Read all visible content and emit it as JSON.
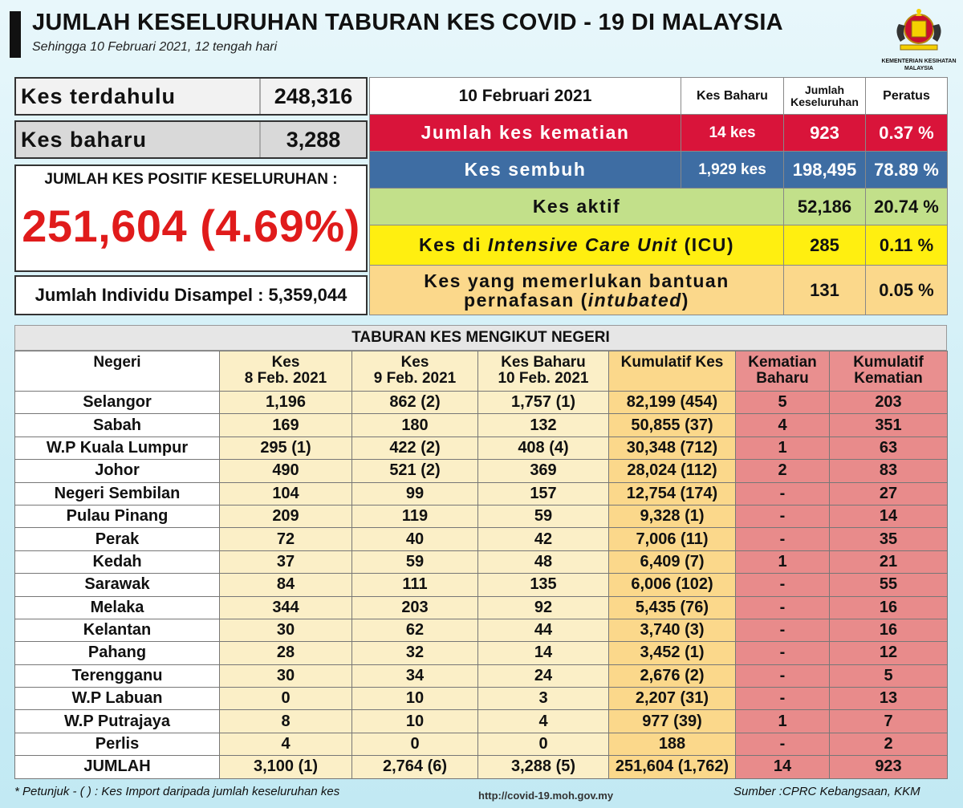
{
  "header": {
    "title": "JUMLAH KESELURUHAN TABURAN KES COVID - 19 DI MALAYSIA",
    "subtitle": "Sehingga 10 Februari 2021, 12 tengah hari",
    "ministry_label": "KEMENTERIAN KESIHATAN MALAYSIA"
  },
  "summary": {
    "prev_label": "Kes terdahulu",
    "prev_value": "248,316",
    "new_label": "Kes baharu",
    "new_value": "3,288",
    "positive_label": "JUMLAH KES POSITIF KESELURUHAN :",
    "positive_value": "251,604 (4.69%)",
    "sampled": "Jumlah Individu Disampel : 5,359,044"
  },
  "status": {
    "date": "10 Februari 2021",
    "col_new": "Kes Baharu",
    "col_total": "Jumlah Keseluruhan",
    "col_pct": "Peratus",
    "death_label": "Jumlah kes kematian",
    "death_new": "14 kes",
    "death_total": "923",
    "death_pct": "0.37 %",
    "recovered_label": "Kes sembuh",
    "recovered_new": "1,929 kes",
    "recovered_total": "198,495",
    "recovered_pct": "78.89 %",
    "active_label": "Kes aktif",
    "active_total": "52,186",
    "active_pct": "20.74 %",
    "icu_pre": "Kes di ",
    "icu_em": "Intensive Care Unit",
    "icu_post": " (ICU)",
    "icu_total": "285",
    "icu_pct": "0.11 %",
    "intub_line1": "Kes yang memerlukan bantuan",
    "intub_line2_pre": "pernafasan (",
    "intub_line2_em": "intubated",
    "intub_line2_post": ")",
    "intub_total": "131",
    "intub_pct": "0.05 %",
    "colors": {
      "death": "#d9143a",
      "recovered": "#3e6da3",
      "active": "#c2e08a",
      "icu": "#ffef10",
      "intubated": "#fbd88b"
    }
  },
  "states": {
    "title": "TABURAN KES MENGIKUT NEGERI",
    "headers": {
      "state": "Negeri",
      "c1a": "Kes",
      "c1b": "8 Feb. 2021",
      "c2a": "Kes",
      "c2b": "9 Feb. 2021",
      "c3a": "Kes Baharu",
      "c3b": "10 Feb. 2021",
      "c4": "Kumulatif Kes",
      "c5a": "Kematian",
      "c5b": "Baharu",
      "c6a": "Kumulatif",
      "c6b": "Kematian"
    },
    "rows": [
      [
        "Selangor",
        "1,196",
        "862 (2)",
        "1,757 (1)",
        "82,199 (454)",
        "5",
        "203"
      ],
      [
        "Sabah",
        "169",
        "180",
        "132",
        "50,855 (37)",
        "4",
        "351"
      ],
      [
        "W.P Kuala Lumpur",
        "295 (1)",
        "422 (2)",
        "408 (4)",
        "30,348 (712)",
        "1",
        "63"
      ],
      [
        "Johor",
        "490",
        "521 (2)",
        "369",
        "28,024 (112)",
        "2",
        "83"
      ],
      [
        "Negeri Sembilan",
        "104",
        "99",
        "157",
        "12,754 (174)",
        "-",
        "27"
      ],
      [
        "Pulau Pinang",
        "209",
        "119",
        "59",
        "9,328 (1)",
        "-",
        "14"
      ],
      [
        "Perak",
        "72",
        "40",
        "42",
        "7,006 (11)",
        "-",
        "35"
      ],
      [
        "Kedah",
        "37",
        "59",
        "48",
        "6,409 (7)",
        "1",
        "21"
      ],
      [
        "Sarawak",
        "84",
        "111",
        "135",
        "6,006 (102)",
        "-",
        "55"
      ],
      [
        "Melaka",
        "344",
        "203",
        "92",
        "5,435 (76)",
        "-",
        "16"
      ],
      [
        "Kelantan",
        "30",
        "62",
        "44",
        "3,740 (3)",
        "-",
        "16"
      ],
      [
        "Pahang",
        "28",
        "32",
        "14",
        "3,452 (1)",
        "-",
        "12"
      ],
      [
        "Terengganu",
        "30",
        "34",
        "24",
        "2,676 (2)",
        "-",
        "5"
      ],
      [
        "W.P Labuan",
        "0",
        "10",
        "3",
        "2,207 (31)",
        "-",
        "13"
      ],
      [
        "W.P Putrajaya",
        "8",
        "10",
        "4",
        "977 (39)",
        "1",
        "7"
      ],
      [
        "Perlis",
        "4",
        "0",
        "0",
        "188",
        "-",
        "2"
      ],
      [
        "JUMLAH",
        "3,100 (1)",
        "2,764 (6)",
        "3,288 (5)",
        "251,604 (1,762)",
        "14",
        "923"
      ]
    ]
  },
  "footer": {
    "note": "* Petunjuk  - (   ) : Kes Import daripada jumlah keseluruhan kes",
    "url": "http://covid-19.moh.gov.my",
    "source": "Sumber :CPRC Kebangsaan,  KKM"
  }
}
